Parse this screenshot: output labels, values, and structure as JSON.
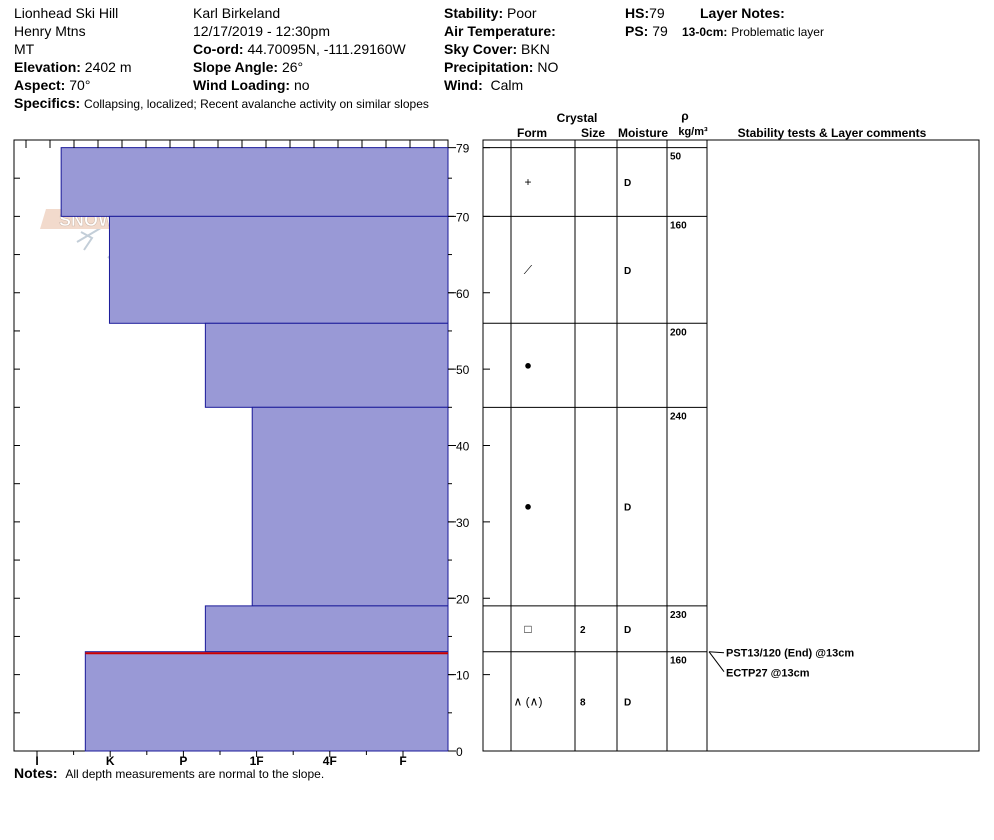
{
  "header": {
    "location": "Lionhead Ski Hill",
    "range": "Henry Mtns",
    "state": "MT",
    "elevation_label": "Elevation:",
    "elevation_value": "2402 m",
    "aspect_label": "Aspect:",
    "aspect_value": "70°",
    "specifics_label": "Specifics:",
    "specifics_value": "Collapsing, localized;  Recent avalanche activity on similar slopes",
    "observer": "Karl Birkeland",
    "datetime": "12/17/2019 - 12:30pm",
    "coord_label": "Co-ord:",
    "coord_value": "44.70095N, -111.29160W",
    "slope_label": "Slope Angle:",
    "slope_value": "26°",
    "wind_loading_label": "Wind Loading:",
    "wind_loading_value": "no",
    "stability_label": "Stability:",
    "stability_value": "Poor",
    "air_temp_label": "Air Temperature:",
    "air_temp_value": "",
    "sky_label": "Sky Cover:",
    "sky_value": "BKN",
    "precip_label": "Precipitation:",
    "precip_value": "NO",
    "wind_label": "Wind:",
    "wind_value": "Calm",
    "hs_label": "HS:",
    "hs_value": "79",
    "ps_label": "PS:",
    "ps_value": "79",
    "layer_notes_label": "Layer Notes:",
    "layer_note_depth": "13-0cm:",
    "layer_note_text": "Problematic layer"
  },
  "logo": {
    "text": "SNOW PILOT"
  },
  "table_headers": {
    "crystal": "Crystal",
    "form": "Form",
    "size": "Size",
    "moisture": "Moisture",
    "rho": "ρ",
    "density_unit": "kg/m³",
    "comments": "Stability tests & Layer comments"
  },
  "notes": {
    "label": "Notes:",
    "text": "All depth measurements are normal to the slope."
  },
  "chart_data": {
    "type": "bar",
    "orientation": "horizontal",
    "y_unit": "cm",
    "ylim": [
      0,
      80
    ],
    "y_ticks": [
      0,
      10,
      20,
      30,
      40,
      50,
      60,
      70,
      79
    ],
    "hardness_scale": [
      "I",
      "K",
      "P",
      "1F",
      "4F",
      "F"
    ],
    "hardness_colors": {
      "fill": "#9999d6",
      "stroke": "#1a1a99",
      "weak_layer": "#cc0000"
    },
    "layers": [
      {
        "top": 79,
        "bottom": 70,
        "hardness_index": 0.33,
        "form": "+",
        "size": "",
        "moisture": "D",
        "density": "50"
      },
      {
        "top": 70,
        "bottom": 56,
        "hardness_index": 0.99,
        "form": "⟋",
        "size": "",
        "moisture": "D",
        "density": "160"
      },
      {
        "top": 56,
        "bottom": 45,
        "hardness_index": 2.3,
        "form": "●",
        "size": "",
        "moisture": "",
        "density": "200"
      },
      {
        "top": 45,
        "bottom": 19,
        "hardness_index": 2.94,
        "form": "●",
        "size": "",
        "moisture": "D",
        "density": "240"
      },
      {
        "top": 19,
        "bottom": 13,
        "hardness_index": 2.3,
        "form": "□",
        "size": "2",
        "moisture": "D",
        "density": "230"
      },
      {
        "top": 13,
        "bottom": 0,
        "hardness_index": 0.66,
        "form": "∧ (∧)",
        "size": "8",
        "moisture": "D",
        "density": "160"
      }
    ],
    "weak_layer_depth": 13,
    "stability_tests": [
      {
        "depth": 13,
        "text": "PST13/120 (End) @13cm"
      },
      {
        "depth": 13,
        "text": "ECTP27 @13cm"
      }
    ]
  }
}
